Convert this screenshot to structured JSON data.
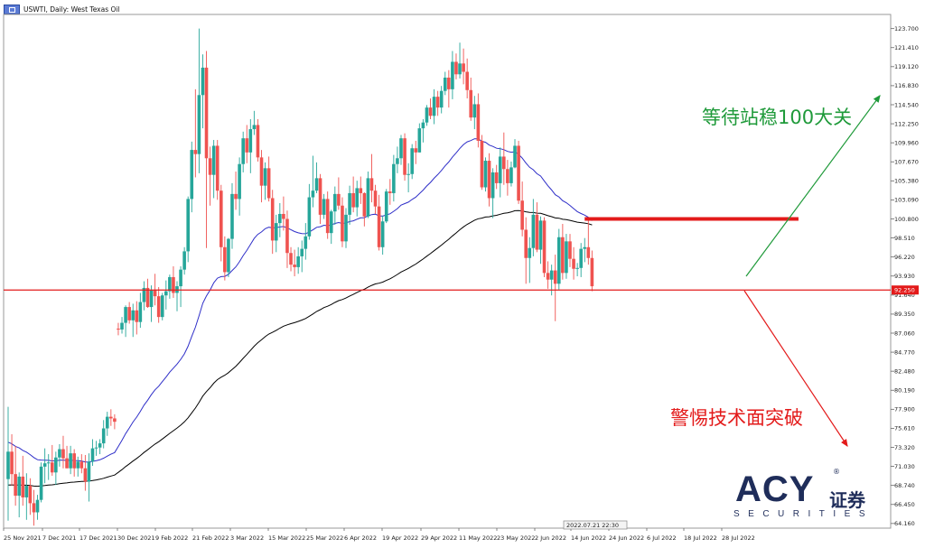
{
  "header": {
    "symbol_title": "USWTI, Daily: West Texas Oil",
    "icon": "chart-window-icon"
  },
  "colors": {
    "bull": "#26a69a",
    "bear": "#ef5350",
    "ma_fast": "#2e2ec8",
    "ma_slow": "#000000",
    "level": "#e31a1a",
    "up_arrow": "#1f9a3a",
    "down_arrow": "#e31a1a",
    "brand": "#1f2d5a"
  },
  "chart_data": {
    "type": "candlestick",
    "y_ticks": [
      "123.700",
      "121.410",
      "119.120",
      "116.830",
      "114.540",
      "112.250",
      "109.960",
      "107.670",
      "105.380",
      "103.090",
      "100.800",
      "98.510",
      "96.220",
      "93.930",
      "91.640",
      "89.350",
      "87.060",
      "84.770",
      "82.480",
      "80.190",
      "77.900",
      "75.610",
      "73.320",
      "71.030",
      "68.740",
      "66.450",
      "64.160"
    ],
    "ylim": [
      63.6,
      125.4
    ],
    "x_ticks": [
      "25 Nov 2021",
      "7 Dec 2021",
      "17 Dec 2021",
      "30 Dec 2021",
      "9 Feb 2022",
      "21 Feb 2022",
      "3 Mar 2022",
      "15 Mar 2022",
      "25 Mar 2022",
      "6 Apr 2022",
      "19 Apr 2022",
      "29 Apr 2022",
      "11 May 2022",
      "23 May 2022",
      "2 Jun 2022",
      "14 Jun 2022",
      "24 Jun 2022",
      "6 Jul 2022",
      "18 Jul 2022",
      "28 Jul 2022"
    ],
    "current_price_label": "92.250",
    "current_price": 92.25,
    "crosshair_time_label": "2022.07.21 22:30",
    "horizontal_levels": [
      {
        "name": "support-line",
        "value": 92.25
      },
      {
        "name": "resistance-segment",
        "value": 100.8,
        "from_index": 157,
        "to_index": 198
      }
    ],
    "moving_averages": [
      {
        "name": "ma-fast",
        "color": "#2e2ec8",
        "start_index": 40
      },
      {
        "name": "ma-slow",
        "color": "#000000",
        "start_index": 0
      }
    ],
    "candles": [
      [
        69.5,
        78.2,
        64.5,
        72.8
      ],
      [
        72.8,
        74.9,
        68.7,
        70.1
      ],
      [
        70.1,
        73.5,
        66.3,
        67.5
      ],
      [
        67.5,
        70.3,
        64.9,
        69.8
      ],
      [
        69.8,
        72.3,
        66.3,
        67.3
      ],
      [
        67.3,
        70.2,
        64.6,
        68.7
      ],
      [
        68.7,
        69.6,
        65.2,
        66.6
      ],
      [
        66.6,
        68.2,
        63.9,
        65.5
      ],
      [
        65.5,
        67.6,
        64.6,
        67.0
      ],
      [
        67.0,
        71.5,
        66.7,
        71.0
      ],
      [
        71.0,
        73.2,
        69.0,
        71.4
      ],
      [
        71.4,
        72.5,
        69.4,
        71.5
      ],
      [
        71.5,
        73.6,
        69.9,
        70.3
      ],
      [
        70.3,
        72.8,
        68.8,
        72.1
      ],
      [
        72.1,
        73.7,
        71.0,
        73.1
      ],
      [
        73.1,
        74.7,
        70.8,
        72.0
      ],
      [
        72.0,
        73.5,
        70.8,
        70.8
      ],
      [
        70.8,
        73.5,
        70.1,
        72.6
      ],
      [
        72.6,
        73.1,
        69.8,
        70.8
      ],
      [
        70.8,
        72.2,
        69.8,
        71.6
      ],
      [
        71.6,
        72.5,
        70.2,
        70.8
      ],
      [
        70.8,
        72.4,
        68.1,
        69.2
      ],
      [
        69.2,
        72.6,
        66.8,
        71.6
      ],
      [
        71.6,
        74.3,
        71.1,
        73.2
      ],
      [
        73.2,
        74.1,
        72.3,
        73.3
      ],
      [
        73.3,
        74.3,
        72.5,
        73.8
      ],
      [
        73.8,
        76.6,
        73.2,
        75.6
      ],
      [
        75.6,
        77.6,
        74.7,
        77.0
      ],
      [
        77.0,
        77.9,
        75.9,
        76.8
      ],
      [
        76.8,
        77.3,
        75.5,
        76.4
      ],
      [
        87.6,
        88.3,
        86.8,
        87.5
      ],
      [
        87.5,
        89.0,
        87.0,
        88.3
      ],
      [
        88.3,
        90.4,
        86.6,
        90.2
      ],
      [
        90.2,
        90.8,
        88.2,
        88.6
      ],
      [
        88.6,
        90.6,
        86.6,
        89.8
      ],
      [
        89.8,
        90.9,
        86.9,
        88.4
      ],
      [
        88.4,
        91.9,
        87.7,
        90.8
      ],
      [
        90.8,
        93.3,
        89.8,
        92.5
      ],
      [
        92.5,
        93.6,
        90.1,
        90.2
      ],
      [
        90.2,
        92.8,
        88.4,
        92.2
      ],
      [
        92.2,
        94.2,
        90.4,
        91.5
      ],
      [
        91.5,
        92.6,
        88.3,
        89.0
      ],
      [
        89.0,
        91.9,
        88.6,
        91.6
      ],
      [
        91.6,
        93.4,
        89.9,
        92.1
      ],
      [
        92.1,
        94.1,
        91.2,
        93.8
      ],
      [
        93.8,
        95.1,
        91.3,
        91.9
      ],
      [
        91.9,
        93.3,
        89.7,
        92.7
      ],
      [
        92.7,
        95.1,
        90.2,
        94.7
      ],
      [
        94.7,
        97.4,
        94.1,
        96.9
      ],
      [
        96.9,
        103.5,
        95.6,
        103.2
      ],
      [
        103.2,
        110.1,
        101.6,
        109.1
      ],
      [
        109.1,
        116.4,
        105.8,
        108.6
      ],
      [
        108.6,
        123.7,
        106.3,
        115.7
      ],
      [
        115.7,
        120.6,
        111.7,
        119.0
      ],
      [
        119.0,
        121.0,
        97.3,
        108.1
      ],
      [
        108.1,
        109.5,
        102.4,
        106.1
      ],
      [
        106.1,
        110.3,
        103.3,
        109.6
      ],
      [
        109.6,
        110.3,
        103.1,
        104.2
      ],
      [
        104.2,
        104.9,
        95.7,
        97.4
      ],
      [
        97.4,
        98.7,
        93.4,
        94.4
      ],
      [
        94.4,
        98.5,
        93.8,
        98.4
      ],
      [
        98.4,
        105.1,
        97.2,
        103.8
      ],
      [
        103.8,
        106.5,
        101.9,
        103.2
      ],
      [
        103.2,
        108.2,
        101.2,
        107.4
      ],
      [
        107.4,
        111.3,
        106.4,
        110.5
      ],
      [
        110.5,
        112.1,
        107.5,
        108.8
      ],
      [
        108.8,
        112.8,
        106.3,
        111.6
      ],
      [
        111.6,
        113.8,
        110.9,
        112.1
      ],
      [
        112.1,
        112.8,
        107.7,
        108.2
      ],
      [
        108.2,
        109.1,
        102.8,
        104.8
      ],
      [
        104.8,
        107.6,
        103.1,
        106.9
      ],
      [
        106.9,
        108.3,
        102.9,
        103.3
      ],
      [
        103.3,
        104.3,
        96.6,
        98.2
      ],
      [
        98.2,
        101.3,
        96.8,
        100.3
      ],
      [
        100.3,
        102.7,
        98.6,
        101.4
      ],
      [
        101.4,
        103.5,
        99.4,
        100.8
      ],
      [
        100.8,
        101.8,
        94.9,
        96.7
      ],
      [
        96.7,
        97.4,
        94.5,
        95.3
      ],
      [
        95.3,
        97.1,
        93.9,
        95.0
      ],
      [
        95.0,
        97.4,
        94.2,
        96.3
      ],
      [
        96.3,
        98.2,
        94.4,
        97.2
      ],
      [
        97.2,
        100.3,
        95.9,
        98.7
      ],
      [
        98.7,
        105.0,
        98.3,
        103.4
      ],
      [
        103.4,
        108.4,
        102.2,
        104.2
      ],
      [
        104.2,
        107.6,
        103.9,
        105.7
      ],
      [
        105.7,
        106.2,
        100.2,
        101.3
      ],
      [
        101.3,
        103.8,
        100.8,
        103.2
      ],
      [
        103.2,
        104.1,
        98.4,
        99.1
      ],
      [
        99.1,
        101.9,
        97.8,
        101.7
      ],
      [
        101.7,
        104.7,
        100.1,
        103.8
      ],
      [
        103.8,
        105.8,
        101.9,
        102.4
      ],
      [
        102.4,
        103.4,
        97.4,
        98.1
      ],
      [
        98.1,
        102.1,
        97.3,
        101.3
      ],
      [
        101.3,
        104.8,
        100.1,
        103.9
      ],
      [
        103.9,
        105.9,
        101.6,
        102.2
      ],
      [
        102.2,
        105.4,
        101.1,
        104.5
      ],
      [
        104.5,
        105.9,
        102.6,
        103.9
      ],
      [
        103.9,
        104.0,
        99.9,
        101.1
      ],
      [
        101.1,
        106.5,
        100.9,
        105.7
      ],
      [
        105.7,
        108.6,
        102.8,
        104.2
      ],
      [
        104.2,
        104.9,
        101.4,
        102.3
      ],
      [
        102.3,
        103.7,
        97.0,
        97.4
      ],
      [
        97.4,
        101.2,
        96.5,
        100.5
      ],
      [
        100.5,
        104.4,
        100.3,
        104.1
      ],
      [
        104.1,
        105.6,
        102.5,
        103.9
      ],
      [
        103.9,
        108.5,
        102.9,
        107.4
      ],
      [
        107.4,
        109.5,
        106.3,
        108.1
      ],
      [
        108.1,
        110.9,
        107.3,
        110.5
      ],
      [
        110.5,
        111.1,
        105.4,
        106.1
      ],
      [
        106.1,
        107.5,
        104.0,
        106.2
      ],
      [
        106.2,
        109.8,
        105.6,
        109.3
      ],
      [
        109.3,
        110.2,
        107.4,
        108.8
      ],
      [
        108.8,
        112.3,
        108.8,
        111.7
      ],
      [
        111.7,
        112.8,
        110.0,
        112.4
      ],
      [
        112.4,
        114.5,
        112.0,
        114.2
      ],
      [
        114.2,
        115.3,
        112.8,
        113.2
      ],
      [
        113.2,
        116.4,
        112.2,
        115.5
      ],
      [
        115.5,
        116.2,
        113.2,
        114.2
      ],
      [
        114.2,
        116.8,
        113.5,
        116.2
      ],
      [
        116.2,
        118.5,
        115.7,
        117.8
      ],
      [
        117.8,
        118.7,
        114.2,
        116.4
      ],
      [
        116.4,
        121.0,
        115.2,
        119.7
      ],
      [
        119.7,
        120.7,
        117.6,
        118.2
      ],
      [
        118.2,
        122.0,
        117.7,
        119.5
      ],
      [
        119.5,
        121.3,
        117.0,
        118.5
      ],
      [
        118.5,
        120.1,
        115.3,
        116.3
      ],
      [
        116.3,
        117.8,
        112.6,
        113.0
      ],
      [
        113.0,
        115.6,
        111.6,
        114.6
      ],
      [
        114.6,
        115.9,
        109.4,
        110.2
      ],
      [
        110.2,
        110.9,
        104.3,
        104.6
      ],
      [
        104.6,
        108.2,
        104.1,
        107.8
      ],
      [
        107.8,
        108.7,
        102.3,
        103.3
      ],
      [
        103.3,
        106.9,
        100.9,
        106.4
      ],
      [
        106.4,
        107.3,
        104.4,
        105.1
      ],
      [
        105.1,
        109.4,
        103.4,
        108.3
      ],
      [
        108.3,
        111.2,
        104.9,
        106.8
      ],
      [
        106.8,
        107.9,
        103.6,
        105.1
      ],
      [
        105.1,
        107.7,
        104.7,
        107.0
      ],
      [
        107.0,
        110.4,
        106.9,
        109.6
      ],
      [
        109.6,
        110.2,
        102.6,
        103.0
      ],
      [
        103.0,
        105.3,
        98.7,
        99.5
      ],
      [
        99.5,
        101.0,
        93.0,
        96.1
      ],
      [
        96.1,
        98.6,
        93.1,
        97.3
      ],
      [
        97.3,
        103.2,
        96.3,
        101.3
      ],
      [
        101.3,
        102.8,
        96.8,
        97.1
      ],
      [
        97.1,
        101.1,
        95.4,
        100.6
      ],
      [
        100.6,
        101.0,
        93.8,
        94.3
      ],
      [
        94.3,
        95.7,
        92.4,
        93.5
      ],
      [
        93.5,
        95.3,
        91.6,
        94.6
      ],
      [
        94.6,
        96.5,
        88.5,
        93.0
      ],
      [
        93.0,
        99.6,
        92.3,
        98.6
      ],
      [
        98.6,
        100.2,
        93.5,
        94.3
      ],
      [
        94.3,
        99.0,
        93.6,
        98.1
      ],
      [
        98.1,
        99.0,
        95.0,
        96.0
      ],
      [
        96.0,
        97.4,
        93.5,
        94.8
      ],
      [
        94.8,
        95.5,
        93.9,
        94.9
      ],
      [
        94.9,
        97.9,
        93.8,
        97.2
      ],
      [
        97.2,
        98.5,
        95.6,
        97.4
      ],
      [
        97.4,
        100.9,
        95.3,
        96.1
      ],
      [
        96.1,
        97.0,
        92.1,
        92.7
      ]
    ],
    "candle_segment_starts": [
      0,
      30,
      160
    ],
    "x_slots_total": 200
  },
  "annotations": {
    "up_text": "等待站稳100大关",
    "down_text": "警惕技术面突破"
  },
  "logo": {
    "brand": "ACY",
    "chinese": "证券",
    "reg": "®",
    "sub": "SECURITIES"
  }
}
